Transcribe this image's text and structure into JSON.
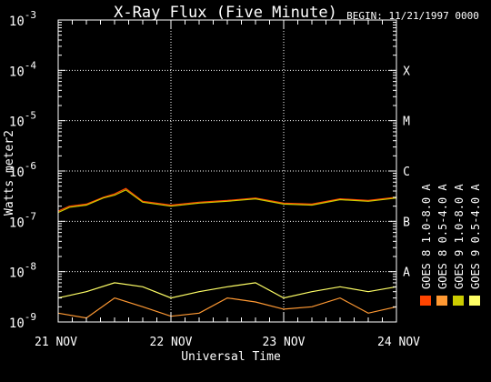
{
  "chart_data": {
    "type": "line",
    "title": "X-Ray Flux (Five Minute)",
    "begin_label": "BEGIN: 11/21/1997 0000",
    "xlabel": "Universal Time",
    "ylabel": "Watts meter2",
    "y_log_scale": true,
    "ylim": [
      1e-09,
      0.001
    ],
    "y_ticks": [
      {
        "base": "10",
        "exp": "-9",
        "value": 1e-09
      },
      {
        "base": "10",
        "exp": "-8",
        "value": 1e-08
      },
      {
        "base": "10",
        "exp": "-7",
        "value": 1e-07
      },
      {
        "base": "10",
        "exp": "-6",
        "value": 1e-06
      },
      {
        "base": "10",
        "exp": "-5",
        "value": 1e-05
      },
      {
        "base": "10",
        "exp": "-4",
        "value": 0.0001
      },
      {
        "base": "10",
        "exp": "-3",
        "value": 0.001
      }
    ],
    "flare_classes": [
      {
        "label": "A",
        "value": 1e-08
      },
      {
        "label": "B",
        "value": 1e-07
      },
      {
        "label": "C",
        "value": 1e-06
      },
      {
        "label": "M",
        "value": 1e-05
      },
      {
        "label": "X",
        "value": 0.0001
      }
    ],
    "xlim": [
      0,
      3
    ],
    "x_ticks": [
      {
        "value": 0,
        "label": "21 NOV"
      },
      {
        "value": 1,
        "label": "22 NOV"
      },
      {
        "value": 2,
        "label": "23 NOV"
      },
      {
        "value": 3,
        "label": "24 NOV"
      }
    ],
    "grid": true,
    "legend_placement": "right, vertical",
    "series": [
      {
        "name": "GOES 8 1.0-8.0 A",
        "color": "#ff4400",
        "x": [
          0,
          0.1,
          0.25,
          0.4,
          0.5,
          0.6,
          0.75,
          1.0,
          1.25,
          1.5,
          1.75,
          2.0,
          2.25,
          2.5,
          2.75,
          3.0
        ],
        "y": [
          1.6e-07,
          2e-07,
          2.2e-07,
          3e-07,
          3.5e-07,
          4.5e-07,
          2.5e-07,
          2.1e-07,
          2.4e-07,
          2.6e-07,
          2.9e-07,
          2.3e-07,
          2.2e-07,
          2.8e-07,
          2.6e-07,
          3e-07
        ]
      },
      {
        "name": "GOES 8 0.5-4.0 A",
        "color": "#ff9933",
        "x": [
          0,
          0.25,
          0.5,
          0.75,
          1.0,
          1.25,
          1.5,
          1.75,
          2.0,
          2.25,
          2.5,
          2.75,
          3.0
        ],
        "y": [
          1.5e-09,
          1.2e-09,
          3e-09,
          2e-09,
          1.3e-09,
          1.5e-09,
          3e-09,
          2.5e-09,
          1.8e-09,
          2e-09,
          3e-09,
          1.5e-09,
          2e-09
        ]
      },
      {
        "name": "GOES 9 1.0-8.0 A",
        "color": "#cccc00",
        "x": [
          0,
          0.1,
          0.25,
          0.4,
          0.5,
          0.6,
          0.75,
          1.0,
          1.25,
          1.5,
          1.75,
          2.0,
          2.25,
          2.5,
          2.75,
          3.0
        ],
        "y": [
          1.5e-07,
          1.9e-07,
          2.1e-07,
          2.9e-07,
          3.3e-07,
          4.2e-07,
          2.4e-07,
          2e-07,
          2.3e-07,
          2.5e-07,
          2.8e-07,
          2.2e-07,
          2.1e-07,
          2.7e-07,
          2.5e-07,
          2.9e-07
        ]
      },
      {
        "name": "GOES 9 0.5-4.0 A",
        "color": "#ffff66",
        "x": [
          0,
          0.25,
          0.5,
          0.75,
          1.0,
          1.25,
          1.5,
          1.75,
          2.0,
          2.25,
          2.5,
          2.75,
          3.0
        ],
        "y": [
          3e-09,
          4e-09,
          6e-09,
          5e-09,
          3e-09,
          4e-09,
          5e-09,
          6e-09,
          3e-09,
          4e-09,
          5e-09,
          4e-09,
          5e-09
        ]
      }
    ]
  }
}
